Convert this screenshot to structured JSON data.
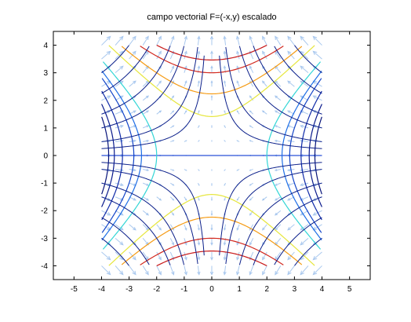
{
  "chart_data": {
    "type": "vector-field-contour",
    "title": "campo vectorial F=(-x,y) escalado",
    "xlabel": "",
    "ylabel": "",
    "xlim": [
      -5.75,
      5.75
    ],
    "ylim": [
      -4.5,
      4.5
    ],
    "xticks": [
      -5,
      -4,
      -3,
      -2,
      -1,
      0,
      1,
      2,
      3,
      4,
      5
    ],
    "yticks": [
      -4,
      -3,
      -2,
      -1,
      0,
      1,
      2,
      3,
      4
    ],
    "grid": false,
    "domain": {
      "x": [
        -4,
        4
      ],
      "y": [
        -4,
        4
      ]
    },
    "vector_field": {
      "u": "-x",
      "v": "y",
      "grid_step": 0.5,
      "scaled": true,
      "color": "#a9c8ee"
    },
    "contours": {
      "function": "x^2 - y^2",
      "levels": [
        {
          "value": -12,
          "color": "#c81818"
        },
        {
          "value": -9,
          "color": "#d2281e"
        },
        {
          "value": -5,
          "color": "#f59b14"
        },
        {
          "value": -2,
          "color": "#e6e63c"
        },
        {
          "value": 0,
          "color": "#2a52d6"
        },
        {
          "value": 4,
          "color": "#33d6d6"
        },
        {
          "value": 6.5,
          "color": "#1e6ee6"
        },
        {
          "value": 8,
          "color": "#1445c8"
        },
        {
          "value": 10.5,
          "color": "#0f2aa8"
        },
        {
          "value": 12.5,
          "color": "#0a1a8c"
        },
        {
          "value": 14,
          "color": "#07137a"
        }
      ]
    },
    "streamlines": {
      "function": "x*y",
      "levels": [
        -12,
        -9,
        -6,
        -4,
        -2,
        -1,
        1,
        2,
        4,
        6,
        9,
        12
      ],
      "color": "#0b1f8a"
    }
  }
}
